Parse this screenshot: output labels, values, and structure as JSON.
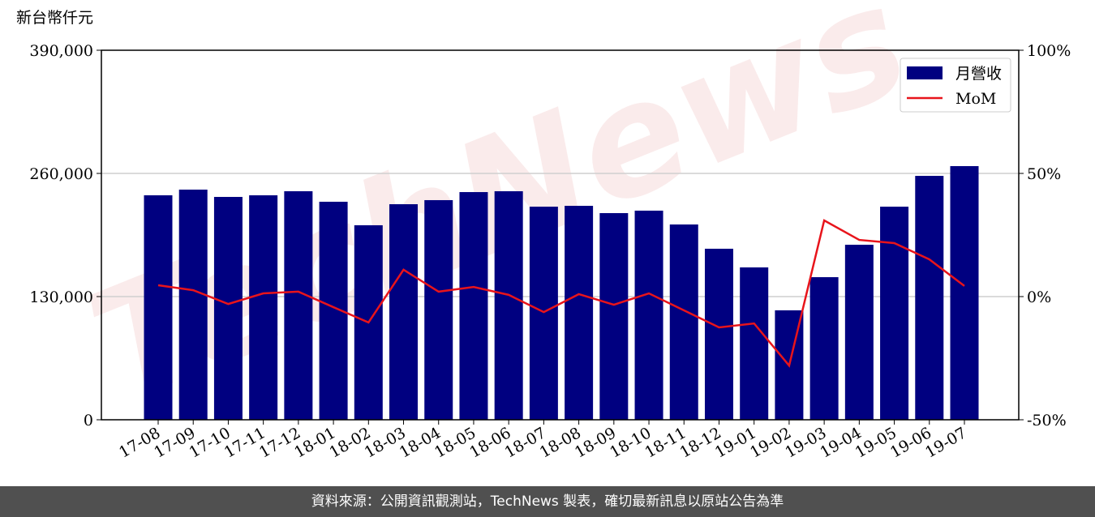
{
  "chart_data": {
    "type": "bar-line",
    "y_label": "新台幣仟元",
    "watermark": "TechNews",
    "categories": [
      "17-08",
      "17-09",
      "17-10",
      "17-11",
      "17-12",
      "18-01",
      "18-02",
      "18-03",
      "18-04",
      "18-05",
      "18-06",
      "18-07",
      "18-08",
      "18-09",
      "18-10",
      "18-11",
      "18-12",
      "19-01",
      "19-02",
      "19-03",
      "19-04",
      "19-05",
      "19-06",
      "19-07"
    ],
    "series": [
      {
        "name": "月營收",
        "type": "bar",
        "color": "#000080",
        "values": [
          236900,
          242900,
          235200,
          236900,
          241200,
          230100,
          205300,
          227500,
          231800,
          240300,
          241200,
          224900,
          225800,
          218100,
          220700,
          206100,
          180500,
          160800,
          115500,
          150500,
          184700,
          224900,
          257400,
          267700
        ]
      },
      {
        "name": "MoM",
        "type": "line",
        "axis": "y2",
        "color": "#e8141b",
        "values": [
          4.6,
          2.6,
          -3.0,
          1.3,
          2.0,
          -4.3,
          -10.5,
          10.9,
          2.0,
          3.9,
          0.7,
          -6.3,
          1.0,
          -3.3,
          1.3,
          -5.6,
          -12.5,
          -10.9,
          -28.0,
          30.9,
          23.0,
          21.7,
          15.1,
          4.3
        ]
      }
    ],
    "ylim": [
      0,
      390000
    ],
    "yticks": [
      0,
      {
        "value": 130000,
        "label": "130,000"
      },
      {
        "value": 260000,
        "label": "260,000"
      },
      {
        "value": 390000,
        "label": "390,000"
      }
    ],
    "y2lim": [
      -50,
      100
    ],
    "y2ticks": [
      {
        "value": -50,
        "label": "-50%"
      },
      {
        "value": 0,
        "label": "0%"
      },
      {
        "value": 50,
        "label": "50%"
      },
      {
        "value": 100,
        "label": "100%"
      }
    ],
    "grid": true,
    "legend": "upper right"
  },
  "footer": "資料來源：公開資訊觀測站，TechNews 製表，確切最新訊息以原站公告為準"
}
